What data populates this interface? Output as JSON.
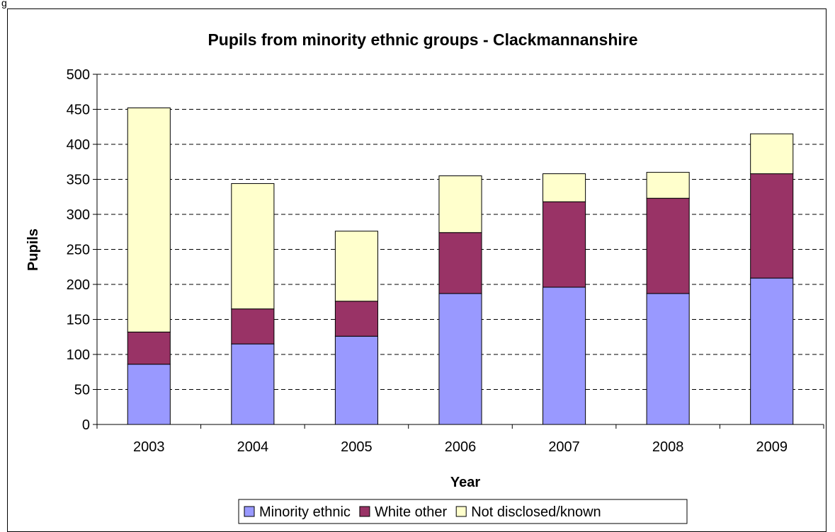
{
  "figure_label": "g",
  "chart_data": {
    "type": "bar",
    "stacked": true,
    "title": "Pupils from minority ethnic groups - Clackmannanshire",
    "xlabel": "Year",
    "ylabel": "Pupils",
    "ylim": [
      0,
      500
    ],
    "yticks": [
      0,
      50,
      100,
      150,
      200,
      250,
      300,
      350,
      400,
      450,
      500
    ],
    "grid": "horizontal-dashed",
    "legend_position": "bottom",
    "categories": [
      "2003",
      "2004",
      "2005",
      "2006",
      "2007",
      "2008",
      "2009"
    ],
    "series": [
      {
        "name": "Minority ethnic",
        "color": "#9999ff",
        "values": [
          86,
          115,
          126,
          187,
          196,
          187,
          209
        ]
      },
      {
        "name": "White other",
        "color": "#993366",
        "values": [
          46,
          50,
          50,
          87,
          122,
          136,
          149
        ]
      },
      {
        "name": "Not disclosed/known",
        "color": "#ffffcc",
        "values": [
          320,
          179,
          100,
          81,
          40,
          37,
          57
        ]
      }
    ]
  }
}
